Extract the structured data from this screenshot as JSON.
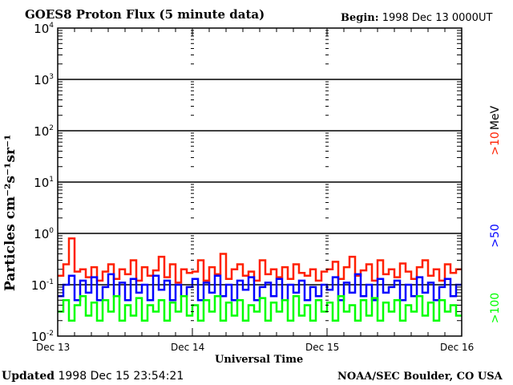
{
  "header": {
    "title": "GOES8 Proton Flux (5 minute data)",
    "begin_label": "Begin:",
    "begin_value": "1998 Dec 13 0000UT"
  },
  "footer": {
    "updated_label": "Updated",
    "updated_value": "1998 Dec 15 23:54:21",
    "credit": "NOAA/SEC Boulder, CO USA"
  },
  "chart_data": {
    "type": "line",
    "title": "GOES8 Proton Flux (5 minute data)",
    "xlabel": "Universal Time",
    "ylabel": "Particles cm⁻²s⁻¹sr⁻¹",
    "y_scale": "log",
    "ylim": [
      0.01,
      10000
    ],
    "y_ticks": [
      {
        "base": "10",
        "exp": "4"
      },
      {
        "base": "10",
        "exp": "3"
      },
      {
        "base": "10",
        "exp": "2"
      },
      {
        "base": "10",
        "exp": "1"
      },
      {
        "base": "10",
        "exp": "0"
      },
      {
        "base": "10",
        "exp": "-1"
      },
      {
        "base": "10",
        "exp": "-2"
      }
    ],
    "x_ticks": [
      "Dec 13",
      "Dec 14",
      "Dec 15",
      "Dec 16"
    ],
    "x_range_hours": [
      0,
      72
    ],
    "grid": "horizontal at decades",
    "energy_unit": "MeV",
    "series": [
      {
        "name": ">10",
        "color": "#ff2000",
        "values": [
          0.15,
          0.25,
          0.8,
          0.18,
          0.2,
          0.14,
          0.22,
          0.12,
          0.18,
          0.25,
          0.13,
          0.2,
          0.16,
          0.3,
          0.12,
          0.22,
          0.15,
          0.19,
          0.35,
          0.14,
          0.25,
          0.11,
          0.2,
          0.17,
          0.18,
          0.3,
          0.12,
          0.22,
          0.16,
          0.4,
          0.13,
          0.2,
          0.25,
          0.15,
          0.18,
          0.12,
          0.3,
          0.16,
          0.2,
          0.14,
          0.22,
          0.13,
          0.25,
          0.17,
          0.15,
          0.2,
          0.12,
          0.18,
          0.2,
          0.28,
          0.13,
          0.22,
          0.35,
          0.15,
          0.19,
          0.25,
          0.12,
          0.3,
          0.16,
          0.2,
          0.14,
          0.26,
          0.18,
          0.13,
          0.22,
          0.3,
          0.15,
          0.2,
          0.12,
          0.25,
          0.17,
          0.2
        ]
      },
      {
        "name": ">50",
        "color": "#0000ff",
        "values": [
          0.06,
          0.1,
          0.15,
          0.05,
          0.12,
          0.07,
          0.14,
          0.05,
          0.09,
          0.16,
          0.06,
          0.11,
          0.05,
          0.13,
          0.07,
          0.1,
          0.05,
          0.15,
          0.08,
          0.12,
          0.05,
          0.1,
          0.06,
          0.09,
          0.13,
          0.05,
          0.11,
          0.07,
          0.15,
          0.06,
          0.1,
          0.05,
          0.12,
          0.08,
          0.14,
          0.05,
          0.09,
          0.11,
          0.06,
          0.13,
          0.05,
          0.1,
          0.07,
          0.12,
          0.05,
          0.09,
          0.06,
          0.1,
          0.08,
          0.14,
          0.05,
          0.11,
          0.07,
          0.16,
          0.06,
          0.1,
          0.05,
          0.13,
          0.07,
          0.09,
          0.12,
          0.05,
          0.1,
          0.06,
          0.14,
          0.07,
          0.11,
          0.05,
          0.09,
          0.13,
          0.06,
          0.1
        ]
      },
      {
        "name": ">100",
        "color": "#00ff00",
        "values": [
          0.03,
          0.05,
          0.02,
          0.04,
          0.06,
          0.025,
          0.045,
          0.02,
          0.05,
          0.03,
          0.06,
          0.02,
          0.04,
          0.025,
          0.055,
          0.02,
          0.04,
          0.03,
          0.05,
          0.02,
          0.045,
          0.03,
          0.06,
          0.025,
          0.04,
          0.02,
          0.05,
          0.03,
          0.06,
          0.02,
          0.045,
          0.025,
          0.05,
          0.02,
          0.04,
          0.03,
          0.055,
          0.02,
          0.045,
          0.03,
          0.05,
          0.02,
          0.06,
          0.025,
          0.04,
          0.02,
          0.05,
          0.03,
          0.045,
          0.02,
          0.06,
          0.03,
          0.04,
          0.02,
          0.05,
          0.025,
          0.055,
          0.02,
          0.045,
          0.03,
          0.05,
          0.02,
          0.04,
          0.03,
          0.06,
          0.025,
          0.045,
          0.02,
          0.05,
          0.03,
          0.04,
          0.025
        ]
      }
    ]
  }
}
